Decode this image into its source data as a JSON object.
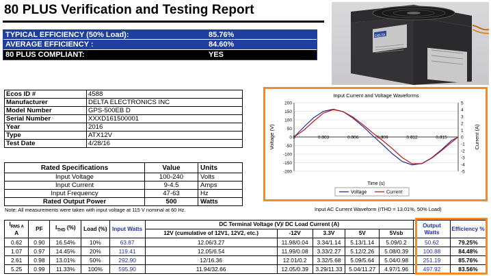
{
  "report": {
    "title": "80 PLUS Verification and Testing Report"
  },
  "summary": [
    {
      "label": "TYPICAL EFFICIENCY (50% Load):",
      "value": "85.76%"
    },
    {
      "label": "AVERAGE EFFICIENCY :",
      "value": "84.60%"
    },
    {
      "label": "80 PLUS COMPLIANT:",
      "value": "YES"
    }
  ],
  "photo": {
    "brand_label": "DELTA"
  },
  "info": [
    {
      "key": "Ecos ID #",
      "value": "4588"
    },
    {
      "key": "Manufacturer",
      "value": "DELTA ELECTRONICS INC"
    },
    {
      "key": "Model Number",
      "value": "GPS-500EB D"
    },
    {
      "key": "Serial Number",
      "value": "XXXD161500001"
    },
    {
      "key": "Year",
      "value": "2016"
    },
    {
      "key": "Type",
      "value": "ATX12V"
    },
    {
      "key": "Test Date",
      "value": "4/28/16"
    }
  ],
  "specs": {
    "headers": [
      "Rated Specifications",
      "Value",
      "Units"
    ],
    "rows": [
      {
        "name": "Input Voltage",
        "value": "100-240",
        "unit": "Volts"
      },
      {
        "name": "Input Current",
        "value": "9-4.5",
        "unit": "Amps"
      },
      {
        "name": "Input Frequency",
        "value": "47-63",
        "unit": "Hz"
      },
      {
        "name": "Rated Output Power",
        "value": "500",
        "unit": "Watts"
      }
    ],
    "note": "Note: All measurements were taken with input voltage at 115 V nominal at 60 Hz."
  },
  "chart_caption": "Input AC Current Waveform (ITHD = 13.01%, 50% Load)",
  "chart_data": {
    "type": "line",
    "title": "Input Current and Voltage Waveforms",
    "xlabel": "Time (s)",
    "ylabel": "Voltage (V)",
    "y2label": "Current (A)",
    "xlim": [
      0,
      0.0167
    ],
    "ylim": [
      -200,
      200
    ],
    "y2lim": [
      -5,
      5
    ],
    "x_ticks": [
      "0",
      "0.003",
      "0.006",
      "0.009",
      "0.012",
      "0.015"
    ],
    "x_tick_values": [
      0,
      0.003,
      0.006,
      0.009,
      0.012,
      0.015
    ],
    "y_ticks": [
      "200",
      "150",
      "100",
      "50",
      "0",
      "-50",
      "-100",
      "-150",
      "-200"
    ],
    "y2_ticks": [
      "5",
      "4",
      "3",
      "2",
      "1",
      "0",
      "-1",
      "-2",
      "-3",
      "-4",
      "-5"
    ],
    "grid": true,
    "legend": "bottom",
    "series": [
      {
        "name": "Voltage",
        "axis": "left",
        "color": "#1f2f8f",
        "x": [
          0,
          0.001,
          0.002,
          0.003,
          0.004,
          0.005,
          0.006,
          0.007,
          0.008,
          0.009,
          0.01,
          0.011,
          0.012,
          0.013,
          0.014,
          0.015,
          0.016,
          0.0167
        ],
        "y": [
          0,
          58,
          113,
          150,
          162,
          148,
          110,
          62,
          8,
          -44,
          -98,
          -143,
          -163,
          -155,
          -122,
          -75,
          -22,
          0
        ]
      },
      {
        "name": "Current",
        "axis": "right",
        "color": "#c01818",
        "x": [
          0,
          0.001,
          0.002,
          0.003,
          0.004,
          0.005,
          0.006,
          0.007,
          0.008,
          0.009,
          0.01,
          0.011,
          0.012,
          0.013,
          0.014,
          0.015,
          0.016,
          0.0167
        ],
        "y": [
          0,
          1.0,
          2.3,
          3.5,
          4.0,
          3.7,
          2.9,
          1.8,
          0.6,
          -0.5,
          -1.7,
          -3.0,
          -3.9,
          -3.9,
          -3.1,
          -2.0,
          -0.8,
          0
        ]
      }
    ]
  },
  "data_table": {
    "headers": {
      "irms": "I",
      "irms_sub": "RMS A",
      "irms_unit": "A",
      "pf": "PF",
      "ithd": "I",
      "ithd_sub": "THD",
      "ithd_unit": "(%)",
      "load": "Load (%)",
      "input_watts": "Input Watts",
      "dc_group": "DC Terminal Voltage (V)/ DC Load Current (A)",
      "dc_cols": [
        "12V (cumulative of 12V1, 12V2, etc.)",
        "-12V",
        "3.3V",
        "5V",
        "5Vsb"
      ],
      "output_watts": "Output Watts",
      "efficiency": "Efficiency %"
    },
    "rows": [
      {
        "irms": "0.62",
        "pf": "0.90",
        "ithd": "16.54%",
        "load": "10%",
        "input": "63.87",
        "v12": "12.06/3.27",
        "vn12": "11.98/0.04",
        "v33": "3.34/1.14",
        "v5": "5.13/1.14",
        "v5sb": "5.09/0.2",
        "output": "50.62",
        "eff": "79.25%"
      },
      {
        "irms": "1.07",
        "pf": "0.97",
        "ithd": "14.45%",
        "load": "20%",
        "input": "119.41",
        "v12": "12.05/6.54",
        "vn12": "11.99/0.08",
        "v33": "3.33/2.27",
        "v5": "5.12/2.26",
        "v5sb": "5.08/0.39",
        "output": "100.88",
        "eff": "84.48%"
      },
      {
        "irms": "2.61",
        "pf": "0.98",
        "ithd": "13.01%",
        "load": "50%",
        "input": "292.90",
        "v12": "12/16.36",
        "vn12": "12.01/0.2",
        "v33": "3.32/5.68",
        "v5": "5.09/5.64",
        "v5sb": "5.04/0.98",
        "output": "251.19",
        "eff": "85.76%"
      },
      {
        "irms": "5.25",
        "pf": "0.99",
        "ithd": "11.33%",
        "load": "100%",
        "input": "595.90",
        "v12": "11.94/32.66",
        "vn12": "12.05/0.39",
        "v33": "3.29/11.33",
        "v5": "5.04/11.27",
        "v5sb": "4.97/1.96",
        "output": "497.92",
        "eff": "83.56%"
      }
    ]
  },
  "colors": {
    "summary_bg": "#1f3f9f",
    "highlight": "#f08a2c",
    "link_blue": "#1f2fa8"
  }
}
